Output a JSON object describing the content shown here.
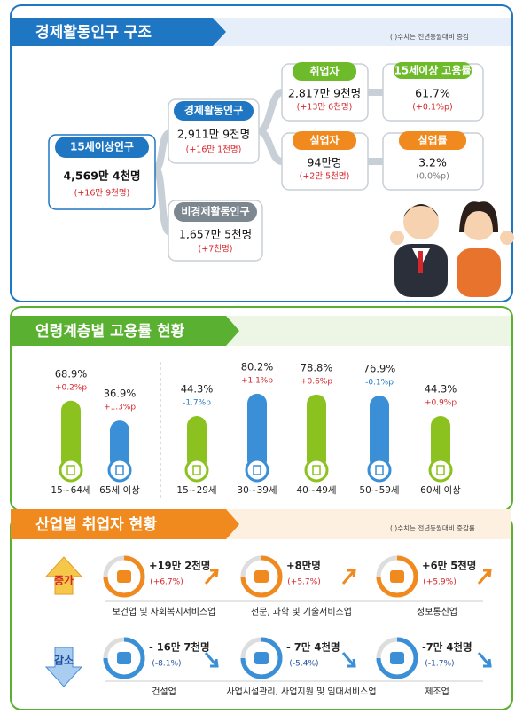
{
  "structure": {
    "title": "경제활동인구 구조",
    "note": "( )수치는 전년동월대비 증감",
    "population": {
      "label": "15세이상인구",
      "value": "4,569만 4천명",
      "change": "(+16만 9천명)"
    },
    "active": {
      "label": "경제활동인구",
      "value": "2,911만 9천명",
      "change": "(+16만 1천명)"
    },
    "inactive": {
      "label": "비경제활동인구",
      "value": "1,657만 5천명",
      "change": "(+7천명)"
    },
    "employed": {
      "label": "취업자",
      "value": "2,817만 9천명",
      "change": "(+13만 6천명)"
    },
    "employment_rate": {
      "label": "15세이상 고용률",
      "value": "61.7%",
      "change": "(+0.1%p)"
    },
    "unemployed": {
      "label": "실업자",
      "value": "94만명",
      "change": "(+2만 5천명)"
    },
    "unemployment_rate": {
      "label": "실업률",
      "value": "3.2%",
      "change": "(0.0%p)"
    }
  },
  "age_employment": {
    "title": "연령계층별 고용률 현황",
    "groups": [
      {
        "label": "15~64세",
        "rate": 68.9,
        "rate_label": "68.9%",
        "change": "+0.2%p"
      },
      {
        "label": "65세 이상",
        "rate": 36.9,
        "rate_label": "36.9%",
        "change": "+1.3%p"
      },
      {
        "label": "15~29세",
        "rate": 44.3,
        "rate_label": "44.3%",
        "change": "-1.7%p"
      },
      {
        "label": "30~39세",
        "rate": 80.2,
        "rate_label": "80.2%",
        "change": "+1.1%p"
      },
      {
        "label": "40~49세",
        "rate": 78.8,
        "rate_label": "78.8%",
        "change": "+0.6%p"
      },
      {
        "label": "50~59세",
        "rate": 76.9,
        "rate_label": "76.9%",
        "change": "-0.1%p"
      },
      {
        "label": "60세 이상",
        "rate": 44.3,
        "rate_label": "44.3%",
        "change": "+0.9%p"
      }
    ]
  },
  "industry": {
    "title": "산업별 취업자 현황",
    "note": "( )수치는 전년동월대비 증감률",
    "increase": {
      "label": "증가",
      "items": [
        {
          "name": "보건업 및 사회복지서비스업",
          "value": "+19만 2천명",
          "change": "(+6.7%)"
        },
        {
          "name": "전문, 과학 및 기술서비스업",
          "value": "+8만명",
          "change": "(+5.7%)"
        },
        {
          "name": "정보통신업",
          "value": "+6만 5천명",
          "change": "(+5.9%)"
        }
      ]
    },
    "decrease": {
      "label": "감소",
      "items": [
        {
          "name": "건설업",
          "value": "- 16만 7천명",
          "change": "(-8.1%)"
        },
        {
          "name": "사업시설관리, 사업지원 및 임대서비스업",
          "value": "- 7만 4천명",
          "change": "(-5.4%)"
        },
        {
          "name": "제조업",
          "value": "-7만 4천명",
          "change": "(-1.7%)"
        }
      ]
    }
  }
}
